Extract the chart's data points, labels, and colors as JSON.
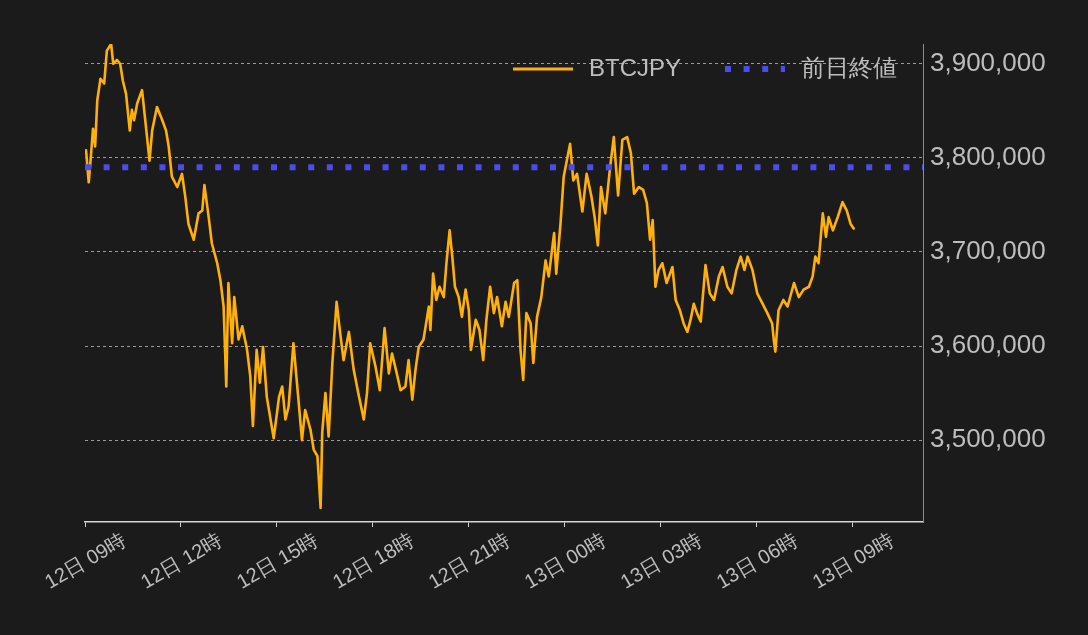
{
  "chart_data": {
    "type": "line",
    "series": [
      {
        "name": "BTCJPY",
        "color": "#ffb10a",
        "x": [
          "--05-12T09:02",
          "--05-12T09:07",
          "--05-12T09:11",
          "--05-12T09:15",
          "--05-12T09:19",
          "--05-12T09:23",
          "--05-12T09:29",
          "--05-12T09:36",
          "--05-12T09:41",
          "--05-12T09:49",
          "--05-12T09:53",
          "--05-12T10:00",
          "--05-12T10:06",
          "--05-12T10:11",
          "--05-12T10:17",
          "--05-12T10:24",
          "--05-12T10:28",
          "--05-12T10:32",
          "--05-12T10:38",
          "--05-12T10:47",
          "--05-12T10:53",
          "--05-12T11:01",
          "--05-12T11:06",
          "--05-12T11:15",
          "--05-12T11:25",
          "--05-12T11:32",
          "--05-12T11:37",
          "--05-12T11:43",
          "--05-12T11:53",
          "--05-12T12:02",
          "--05-12T12:08",
          "--05-12T12:14",
          "--05-12T12:24",
          "--05-12T12:33",
          "--05-12T12:40",
          "--05-12T12:44",
          "--05-12T12:52",
          "--05-12T12:58",
          "--05-12T13:08",
          "--05-12T13:14",
          "--05-12T13:20",
          "--05-12T13:25",
          "--05-12T13:29",
          "--05-12T13:36",
          "--05-12T13:40",
          "--05-12T13:48",
          "--05-12T13:55",
          "--05-12T14:04",
          "--05-12T14:10",
          "--05-12T14:15",
          "--05-12T14:22",
          "--05-12T14:28",
          "--05-12T14:34",
          "--05-12T14:41",
          "--05-12T14:54",
          "--05-12T15:04",
          "--05-12T15:10",
          "--05-12T15:16",
          "--05-12T15:22",
          "--05-12T15:31",
          "--05-12T15:41",
          "--05-12T15:47",
          "--05-12T15:53",
          "--05-12T16:03",
          "--05-12T16:09",
          "--05-12T16:16",
          "--05-12T16:22",
          "--05-12T16:25",
          "--05-12T16:31",
          "--05-12T16:37",
          "--05-12T16:44",
          "--05-12T16:52",
          "--05-12T16:58",
          "--05-12T17:05",
          "--05-12T17:15",
          "--05-12T17:24",
          "--05-12T17:34",
          "--05-12T17:43",
          "--05-12T17:49",
          "--05-12T17:55",
          "--05-12T18:05",
          "--05-12T18:13",
          "--05-12T18:22",
          "--05-12T18:30",
          "--05-12T18:36",
          "--05-12T18:46",
          "--05-12T18:52",
          "--05-12T19:01",
          "--05-12T19:07",
          "--05-12T19:14",
          "--05-12T19:20",
          "--05-12T19:26",
          "--05-12T19:35",
          "--05-12T19:45",
          "--05-12T19:48",
          "--05-12T19:53",
          "--05-12T19:59",
          "--05-12T20:05",
          "--05-12T20:13",
          "--05-12T20:18",
          "--05-12T20:24",
          "--05-12T20:29",
          "--05-12T20:34",
          "--05-12T20:41",
          "--05-12T20:47",
          "--05-12T20:54",
          "--05-12T21:00",
          "--05-12T21:04",
          "--05-12T21:13",
          "--05-12T21:20",
          "--05-12T21:27",
          "--05-12T21:33",
          "--05-12T21:40",
          "--05-12T21:47",
          "--05-12T21:53",
          "--05-12T22:02",
          "--05-12T22:09",
          "--05-12T22:15",
          "--05-12T22:25",
          "--05-12T22:31",
          "--05-12T22:37",
          "--05-12T22:42",
          "--05-12T22:48",
          "--05-12T22:56",
          "--05-12T23:01",
          "--05-12T23:08",
          "--05-12T23:16",
          "--05-12T23:24",
          "--05-12T23:30",
          "--05-12T23:40",
          "--05-12T23:44",
          "--05-12T23:52",
          "--05-12T23:58",
          "--05-13T00:10",
          "--05-13T00:16",
          "--05-13T00:23",
          "--05-13T00:33",
          "--05-13T00:41",
          "--05-13T00:50",
          "--05-13T00:56",
          "--05-13T01:02",
          "--05-13T01:08",
          "--05-13T01:16",
          "--05-13T01:25",
          "--05-13T01:32",
          "--05-13T01:40",
          "--05-13T01:48",
          "--05-13T01:57",
          "--05-13T02:04",
          "--05-13T02:10",
          "--05-13T02:19",
          "--05-13T02:27",
          "--05-13T02:34",
          "--05-13T02:40",
          "--05-13T02:45",
          "--05-13T02:50",
          "--05-13T02:56",
          "--05-13T03:03",
          "--05-13T03:11",
          "--05-13T03:22",
          "--05-13T03:28",
          "--05-13T03:36",
          "--05-13T03:43",
          "--05-13T03:50",
          "--05-13T03:56",
          "--05-13T04:02",
          "--05-13T04:08",
          "--05-13T04:15",
          "--05-13T04:24",
          "--05-13T04:32",
          "--05-13T04:40",
          "--05-13T04:49",
          "--05-13T04:56",
          "--05-13T05:05",
          "--05-13T05:13",
          "--05-13T05:22",
          "--05-13T05:30",
          "--05-13T05:37",
          "--05-13T05:43",
          "--05-13T05:52",
          "--05-13T06:01",
          "--05-13T06:11",
          "--05-13T06:20",
          "--05-13T06:29",
          "--05-13T06:32",
          "--05-13T06:35",
          "--05-13T06:41",
          "--05-13T06:50",
          "--05-13T06:58",
          "--05-13T07:10",
          "--05-13T07:19",
          "--05-13T07:28",
          "--05-13T07:38",
          "--05-13T07:45",
          "--05-13T07:50",
          "--05-13T07:56",
          "--05-13T08:04",
          "--05-13T08:10",
          "--05-13T08:15",
          "--05-13T08:23",
          "--05-13T08:32",
          "--05-13T08:41",
          "--05-13T08:49",
          "--05-13T08:56",
          "--05-13T09:02"
        ],
        "values": [
          3808000,
          3774000,
          3801000,
          3831000,
          3812000,
          3861000,
          3884000,
          3879000,
          3914000,
          3921000,
          3900000,
          3904000,
          3900000,
          3882000,
          3868000,
          3829000,
          3851000,
          3840000,
          3858000,
          3872000,
          3840000,
          3797000,
          3829000,
          3854000,
          3840000,
          3829000,
          3812000,
          3780000,
          3769000,
          3783000,
          3759000,
          3730000,
          3713000,
          3741000,
          3744000,
          3771000,
          3737000,
          3709000,
          3688000,
          3670000,
          3642000,
          3557000,
          3667000,
          3603000,
          3652000,
          3607000,
          3621000,
          3596000,
          3568000,
          3515000,
          3596000,
          3561000,
          3599000,
          3546000,
          3502000,
          3546000,
          3557000,
          3522000,
          3536000,
          3603000,
          3539000,
          3500000,
          3532000,
          3511000,
          3490000,
          3483000,
          3428000,
          3508000,
          3550000,
          3504000,
          3582000,
          3647000,
          3617000,
          3585000,
          3615000,
          3575000,
          3546000,
          3522000,
          3550000,
          3603000,
          3578000,
          3553000,
          3619000,
          3571000,
          3592000,
          3568000,
          3553000,
          3557000,
          3585000,
          3543000,
          3575000,
          3599000,
          3607000,
          3642000,
          3617000,
          3677000,
          3649000,
          3663000,
          3652000,
          3688000,
          3723000,
          3695000,
          3663000,
          3652000,
          3631000,
          3660000,
          3638000,
          3596000,
          3628000,
          3617000,
          3585000,
          3628000,
          3663000,
          3635000,
          3652000,
          3621000,
          3647000,
          3631000,
          3667000,
          3670000,
          3596000,
          3564000,
          3635000,
          3624000,
          3582000,
          3631000,
          3652000,
          3691000,
          3674000,
          3720000,
          3677000,
          3730000,
          3780000,
          3815000,
          3776000,
          3783000,
          3743000,
          3783000,
          3759000,
          3737000,
          3707000,
          3769000,
          3741000,
          3790000,
          3822000,
          3760000,
          3819000,
          3822000,
          3805000,
          3762000,
          3769000,
          3766000,
          3752000,
          3713000,
          3734000,
          3663000,
          3681000,
          3688000,
          3667000,
          3684000,
          3649000,
          3638000,
          3624000,
          3615000,
          3628000,
          3645000,
          3635000,
          3626000,
          3686000,
          3656000,
          3649000,
          3674000,
          3684000,
          3663000,
          3656000,
          3681000,
          3695000,
          3681000,
          3695000,
          3681000,
          3656000,
          3645000,
          3635000,
          3624000,
          3607000,
          3594000,
          3638000,
          3649000,
          3642000,
          3667000,
          3652000,
          3660000,
          3663000,
          3674000,
          3695000,
          3688000,
          3741000,
          3716000,
          3737000,
          3723000,
          3737000,
          3753000,
          3744000,
          3730000,
          3725000
        ]
      }
    ],
    "ref_lines": [
      {
        "axis": "y",
        "value": 3790000,
        "label": "前日終値",
        "color": "#4b4bf0",
        "line_style": "dotted"
      }
    ],
    "xlim": [
      "--05-12T09:00",
      "--05-13T11:12"
    ],
    "xticks": [
      {
        "value": "--05-12T09:00",
        "label": "12日 09時"
      },
      {
        "value": "--05-12T12:00",
        "label": "12日 12時"
      },
      {
        "value": "--05-12T15:00",
        "label": "12日 15時"
      },
      {
        "value": "--05-12T18:00",
        "label": "12日 18時"
      },
      {
        "value": "--05-12T21:00",
        "label": "12日 21時"
      },
      {
        "value": "--05-13T00:00",
        "label": "13日 00時"
      },
      {
        "value": "--05-13T03:00",
        "label": "13日 03時"
      },
      {
        "value": "--05-13T06:00",
        "label": "13日 06時"
      },
      {
        "value": "--05-13T09:00",
        "label": "13日 09時"
      }
    ],
    "ylim": [
      3413000,
      3921000
    ],
    "yticks": [
      {
        "value": 3500000,
        "label": "3,500,000"
      },
      {
        "value": 3600000,
        "label": "3,600,000"
      },
      {
        "value": 3700000,
        "label": "3,700,000"
      },
      {
        "value": 3800000,
        "label": "3,800,000"
      },
      {
        "value": 3900000,
        "label": "3,900,000"
      }
    ],
    "grid": "y",
    "legend": "top right",
    "marker": "none"
  }
}
